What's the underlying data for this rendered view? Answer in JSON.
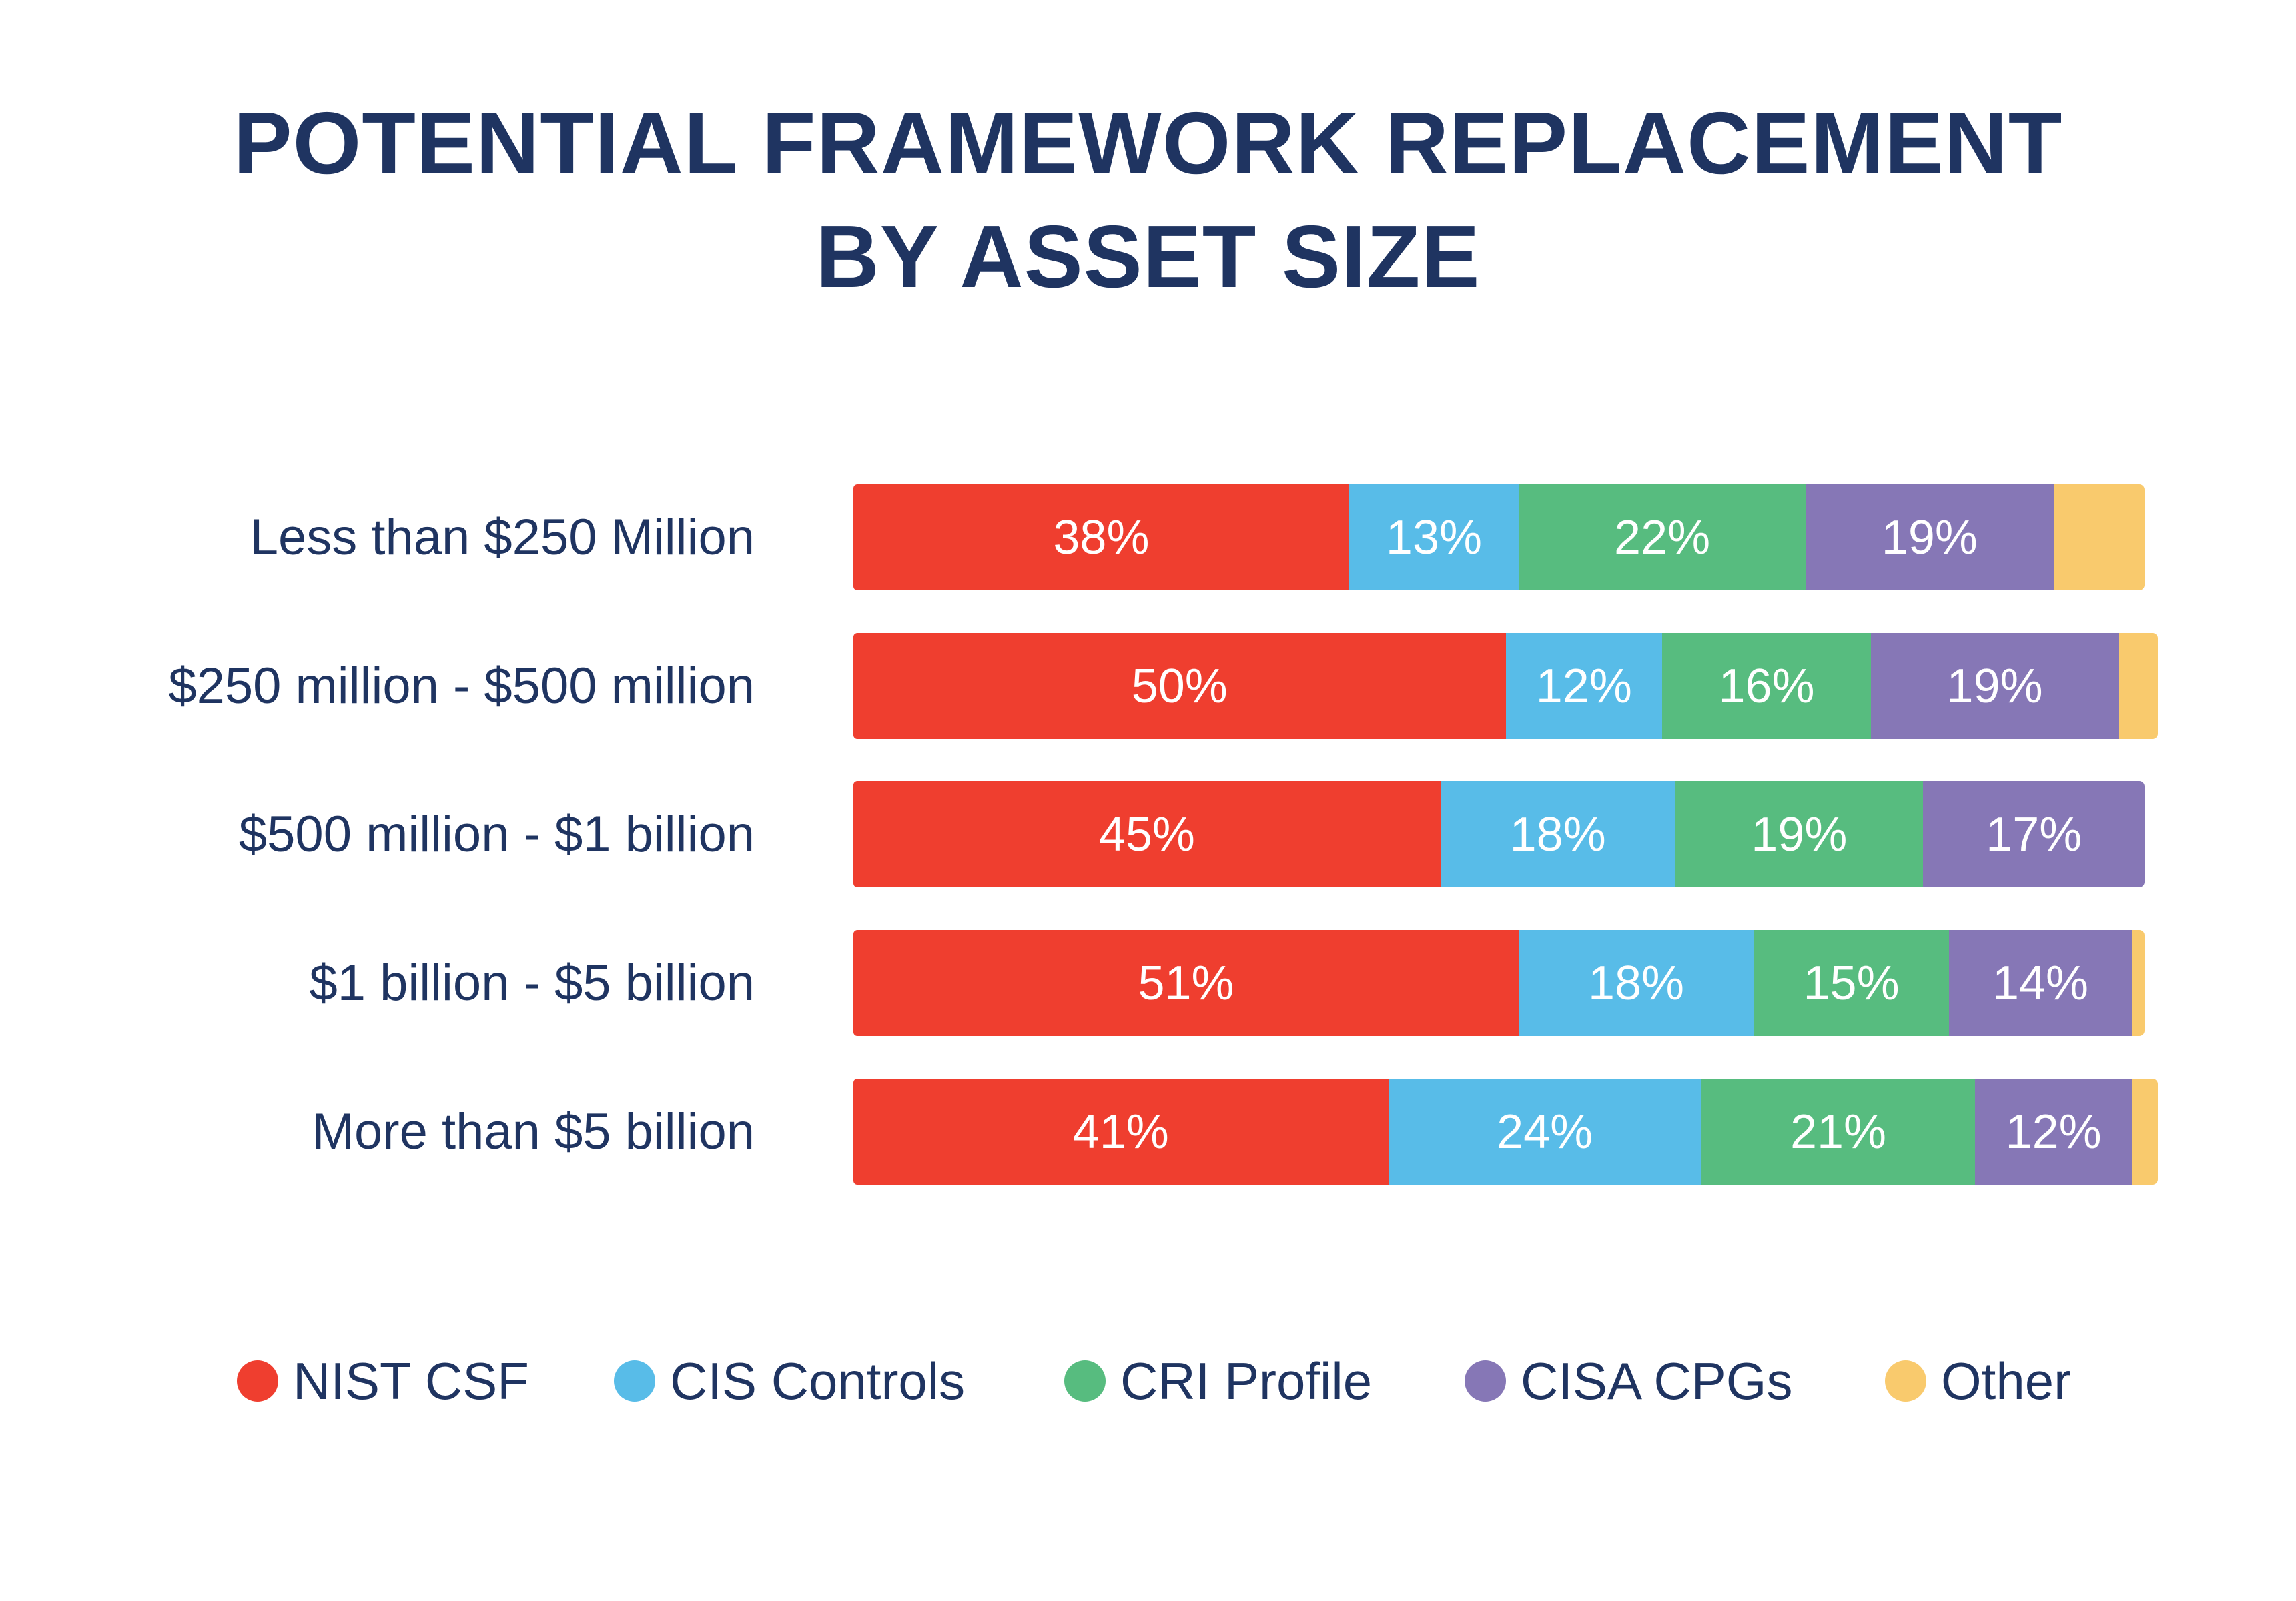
{
  "title_line1": "POTENTIAL FRAMEWORK REPLACEMENT",
  "title_line2": "BY ASSET SIZE",
  "chart_data": {
    "type": "bar",
    "orientation": "horizontal",
    "stacked": true,
    "title": "POTENTIAL FRAMEWORK REPLACEMENT BY ASSET SIZE",
    "xlabel": "",
    "ylabel": "",
    "xlim": [
      0,
      100
    ],
    "grid": false,
    "legend_position": "bottom",
    "categories": [
      "Less than $250 Million",
      "$250 million - $500 million",
      "$500 million - $1 billion",
      "$1 billion - $5 billion",
      "More than $5 billion"
    ],
    "series": [
      {
        "name": "NIST CSF",
        "color": "#ef3e2f",
        "values": [
          38,
          50,
          45,
          51,
          41
        ],
        "labels": [
          "38%",
          "50%",
          "45%",
          "51%",
          "41%"
        ]
      },
      {
        "name": "CIS Controls",
        "color": "#58bce8",
        "values": [
          13,
          12,
          18,
          18,
          24
        ],
        "labels": [
          "13%",
          "12%",
          "18%",
          "18%",
          "24%"
        ]
      },
      {
        "name": "CRI Profile",
        "color": "#57bc7f",
        "values": [
          22,
          16,
          19,
          15,
          21
        ],
        "labels": [
          "22%",
          "16%",
          "19%",
          "15%",
          "21%"
        ]
      },
      {
        "name": "CISA CPGs",
        "color": "#8677b6",
        "values": [
          19,
          19,
          17,
          14,
          12
        ],
        "labels": [
          "19%",
          "19%",
          "17%",
          "14%",
          "12%"
        ]
      },
      {
        "name": "Other",
        "color": "#f9ca6d",
        "values": [
          7,
          3,
          0,
          1,
          2
        ],
        "labels": [
          "",
          "",
          "",
          "",
          ""
        ]
      }
    ]
  }
}
